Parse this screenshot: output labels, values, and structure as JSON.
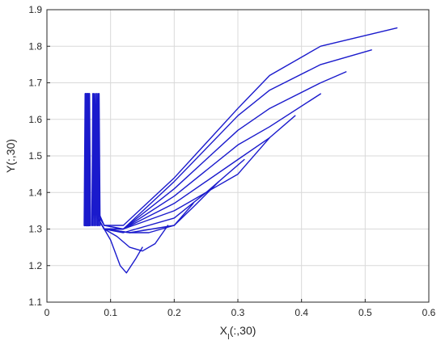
{
  "chart_data": {
    "type": "line",
    "xlabel_base": "X",
    "xlabel_sub": "I",
    "xlabel_suffix": "(:,30)",
    "ylabel": "Y(:,30)",
    "xlim": [
      0,
      0.6
    ],
    "ylim": [
      1.1,
      1.9
    ],
    "xticks": [
      0,
      0.1,
      0.2,
      0.3,
      0.4,
      0.5,
      0.6
    ],
    "xtick_labels": [
      "0",
      "0.1",
      "0.2",
      "0.3",
      "0.4",
      "0.5",
      "0.6"
    ],
    "yticks": [
      1.1,
      1.2,
      1.3,
      1.4,
      1.5,
      1.6,
      1.7,
      1.8,
      1.9
    ],
    "ytick_labels": [
      "1.1",
      "1.2",
      "1.3",
      "1.4",
      "1.5",
      "1.6",
      "1.7",
      "1.8",
      "1.9"
    ],
    "grid": true,
    "line_color": "#1a1acc",
    "oscillation": {
      "x_clusters": [
        [
          0.059,
          0.061,
          0.063,
          0.065
        ],
        [
          0.071,
          0.074,
          0.077,
          0.08
        ]
      ],
      "y_top": 1.67,
      "y_bottom": 1.31
    },
    "series": [
      {
        "x": [
          0.08,
          0.09,
          0.12,
          0.2,
          0.3,
          0.35,
          0.43,
          0.55
        ],
        "y": [
          1.35,
          1.31,
          1.31,
          1.44,
          1.63,
          1.72,
          1.8,
          1.85
        ]
      },
      {
        "x": [
          0.08,
          0.09,
          0.12,
          0.2,
          0.3,
          0.35,
          0.43,
          0.51
        ],
        "y": [
          1.34,
          1.31,
          1.3,
          1.43,
          1.61,
          1.68,
          1.75,
          1.79
        ]
      },
      {
        "x": [
          0.08,
          0.09,
          0.12,
          0.2,
          0.3,
          0.35,
          0.43,
          0.47
        ],
        "y": [
          1.33,
          1.3,
          1.3,
          1.41,
          1.57,
          1.63,
          1.7,
          1.73
        ]
      },
      {
        "x": [
          0.08,
          0.09,
          0.12,
          0.2,
          0.3,
          0.35,
          0.43
        ],
        "y": [
          1.33,
          1.3,
          1.3,
          1.39,
          1.53,
          1.58,
          1.67
        ]
      },
      {
        "x": [
          0.08,
          0.09,
          0.12,
          0.2,
          0.3,
          0.35,
          0.39
        ],
        "y": [
          1.33,
          1.3,
          1.3,
          1.37,
          1.49,
          1.55,
          1.61
        ]
      },
      {
        "x": [
          0.08,
          0.09,
          0.12,
          0.2,
          0.3,
          0.35
        ],
        "y": [
          1.33,
          1.3,
          1.3,
          1.35,
          1.45,
          1.55
        ]
      },
      {
        "x": [
          0.08,
          0.09,
          0.12,
          0.2,
          0.25,
          0.31
        ],
        "y": [
          1.33,
          1.3,
          1.29,
          1.33,
          1.4,
          1.49
        ]
      },
      {
        "x": [
          0.08,
          0.09,
          0.13,
          0.2,
          0.23,
          0.27
        ],
        "y": [
          1.33,
          1.3,
          1.29,
          1.31,
          1.36,
          1.43
        ]
      },
      {
        "x": [
          0.08,
          0.09,
          0.13,
          0.16,
          0.2,
          0.23
        ],
        "y": [
          1.33,
          1.3,
          1.29,
          1.29,
          1.31,
          1.37
        ]
      },
      {
        "x": [
          0.08,
          0.09,
          0.11,
          0.13,
          0.15,
          0.17,
          0.19
        ],
        "y": [
          1.33,
          1.3,
          1.28,
          1.25,
          1.24,
          1.26,
          1.31
        ]
      },
      {
        "x": [
          0.08,
          0.09,
          0.1,
          0.115,
          0.125,
          0.14,
          0.15
        ],
        "y": [
          1.33,
          1.3,
          1.27,
          1.2,
          1.18,
          1.22,
          1.25
        ]
      }
    ]
  }
}
